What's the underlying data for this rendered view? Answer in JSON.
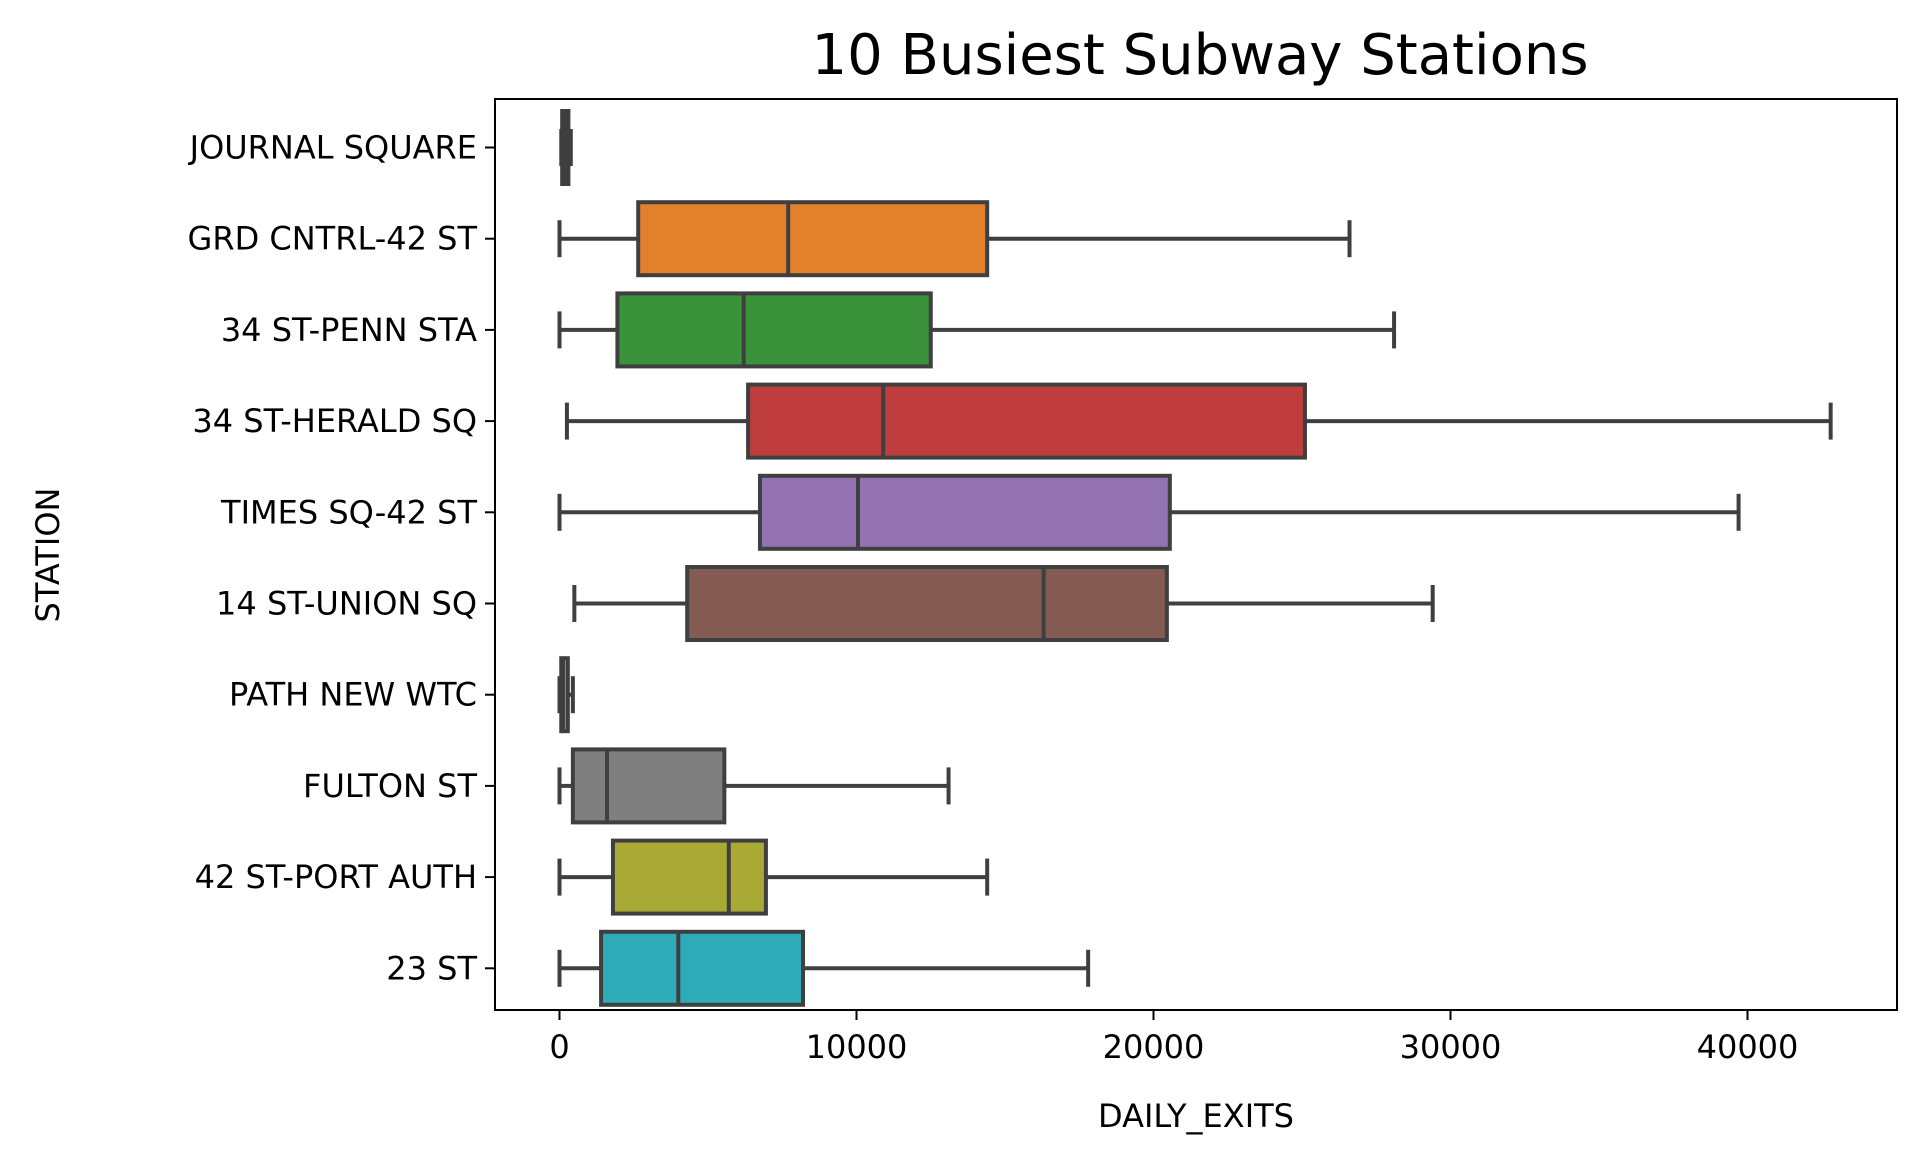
{
  "chart_data": {
    "type": "box",
    "orientation": "horizontal",
    "title": "10 Busiest Subway Stations",
    "xlabel": "DAILY_EXITS",
    "ylabel": "STATION",
    "xlim": [
      -2100,
      45000
    ],
    "xticks": [
      0,
      10000,
      20000,
      30000,
      40000
    ],
    "xtick_labels": [
      "0",
      "10000",
      "20000",
      "30000",
      "40000"
    ],
    "grid": false,
    "legend": "none",
    "categories": [
      "JOURNAL SQUARE",
      "GRD CNTRL-42 ST",
      "34 ST-PENN STA",
      "34 ST-HERALD SQ",
      "TIMES SQ-42 ST",
      "14 ST-UNION SQ",
      "PATH NEW WTC",
      "FULTON ST",
      "42 ST-PORT AUTH",
      "23 ST"
    ],
    "boxes": [
      {
        "category": "JOURNAL SQUARE",
        "whisker_low": 60,
        "q1": 90,
        "median": 180,
        "q3": 300,
        "whisker_high": 380,
        "color": "#3274a1"
      },
      {
        "category": "GRD CNTRL-42 ST",
        "whisker_low": 0,
        "q1": 2650,
        "median": 7700,
        "q3": 14400,
        "whisker_high": 26600,
        "color": "#e1812c"
      },
      {
        "category": "34 ST-PENN STA",
        "whisker_low": 0,
        "q1": 1950,
        "median": 6200,
        "q3": 12500,
        "whisker_high": 28100,
        "color": "#3a923a"
      },
      {
        "category": "34 ST-HERALD SQ",
        "whisker_low": 250,
        "q1": 6350,
        "median": 10900,
        "q3": 25100,
        "whisker_high": 42800,
        "color": "#c03d3e"
      },
      {
        "category": "TIMES SQ-42 ST",
        "whisker_low": 0,
        "q1": 6750,
        "median": 10050,
        "q3": 20550,
        "whisker_high": 39700,
        "color": "#9372b2"
      },
      {
        "category": "14 ST-UNION SQ",
        "whisker_low": 500,
        "q1": 4300,
        "median": 16300,
        "q3": 20450,
        "whisker_high": 29400,
        "color": "#845b53"
      },
      {
        "category": "PATH NEW WTC",
        "whisker_low": 0,
        "q1": 60,
        "median": 120,
        "q3": 280,
        "whisker_high": 450,
        "color": "#d684bd"
      },
      {
        "category": "FULTON ST",
        "whisker_low": 0,
        "q1": 450,
        "median": 1600,
        "q3": 5550,
        "whisker_high": 13100,
        "color": "#7f7f7f"
      },
      {
        "category": "42 ST-PORT AUTH",
        "whisker_low": 0,
        "q1": 1800,
        "median": 5700,
        "q3": 6950,
        "whisker_high": 14400,
        "color": "#a9aa35"
      },
      {
        "category": "23 ST",
        "whisker_low": 0,
        "q1": 1400,
        "median": 4000,
        "q3": 8200,
        "whisker_high": 17800,
        "color": "#2eabb8"
      }
    ],
    "line_color": "#3f3f3f"
  }
}
